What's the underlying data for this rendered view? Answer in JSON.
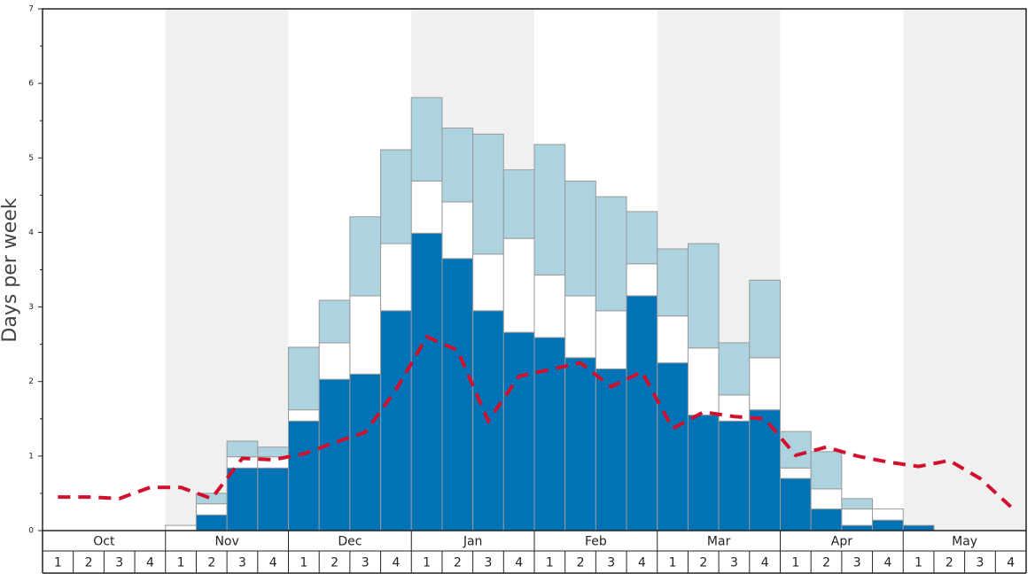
{
  "chart_data": {
    "type": "bar",
    "stacked": true,
    "y_label": "Days per week",
    "ylim": [
      0,
      7
    ],
    "yticks": [
      0,
      1,
      2,
      3,
      4,
      5,
      6,
      7
    ],
    "yminor": [
      0.5,
      1.5,
      2.5,
      3.5,
      4.5,
      5.5,
      6.5
    ],
    "months": [
      "Oct",
      "Nov",
      "Dec",
      "Jan",
      "Feb",
      "Mar",
      "Apr",
      "May"
    ],
    "shaded_months": [
      false,
      true,
      false,
      true,
      false,
      true,
      false,
      true
    ],
    "categories": [
      "1",
      "2",
      "3",
      "4",
      "1",
      "2",
      "3",
      "4",
      "1",
      "2",
      "3",
      "4",
      "1",
      "2",
      "3",
      "4",
      "1",
      "2",
      "3",
      "4",
      "1",
      "2",
      "3",
      "4",
      "1",
      "2",
      "3",
      "4",
      "1",
      "2",
      "3",
      "4"
    ],
    "series": [
      {
        "color": "#0073b6",
        "values": [
          0,
          0,
          0,
          0,
          0,
          0.21,
          0.84,
          0.84,
          1.47,
          2.03,
          2.1,
          2.95,
          3.99,
          3.65,
          2.95,
          2.66,
          2.59,
          2.32,
          2.17,
          3.15,
          2.25,
          1.55,
          1.47,
          1.62,
          0.7,
          0.29,
          0.07,
          0.14,
          0.07,
          0,
          0,
          0
        ]
      },
      {
        "color": "#ffffff",
        "values": [
          0,
          0,
          0,
          0,
          0.07,
          0.15,
          0.15,
          0.15,
          0.15,
          0.49,
          1.05,
          0.9,
          0.7,
          0.76,
          0.76,
          1.26,
          0.84,
          0.83,
          0.78,
          0.43,
          0.63,
          0.9,
          0.35,
          0.7,
          0.14,
          0.27,
          0.22,
          0.15,
          0,
          0,
          0,
          0
        ]
      },
      {
        "color": "#aed3e0",
        "values": [
          0,
          0,
          0,
          0,
          0,
          0.14,
          0.21,
          0.13,
          0.84,
          0.57,
          1.06,
          1.26,
          1.12,
          0.99,
          1.61,
          0.92,
          1.75,
          1.54,
          1.53,
          0.7,
          0.9,
          1.4,
          0.7,
          1.04,
          0.49,
          0.5,
          0.14,
          0,
          0,
          0,
          0,
          0
        ]
      }
    ],
    "line": {
      "type": "line",
      "color": "#d0102c",
      "dashed": true,
      "values": [
        0.45,
        0.45,
        0.43,
        0.58,
        0.58,
        0.43,
        0.97,
        0.95,
        1.03,
        1.18,
        1.32,
        1.89,
        2.6,
        2.42,
        1.47,
        2.07,
        2.16,
        2.25,
        1.93,
        2.13,
        1.37,
        1.59,
        1.53,
        1.5,
        1.01,
        1.12,
        1.0,
        0.92,
        0.86,
        0.94,
        0.7,
        0.32
      ]
    }
  }
}
